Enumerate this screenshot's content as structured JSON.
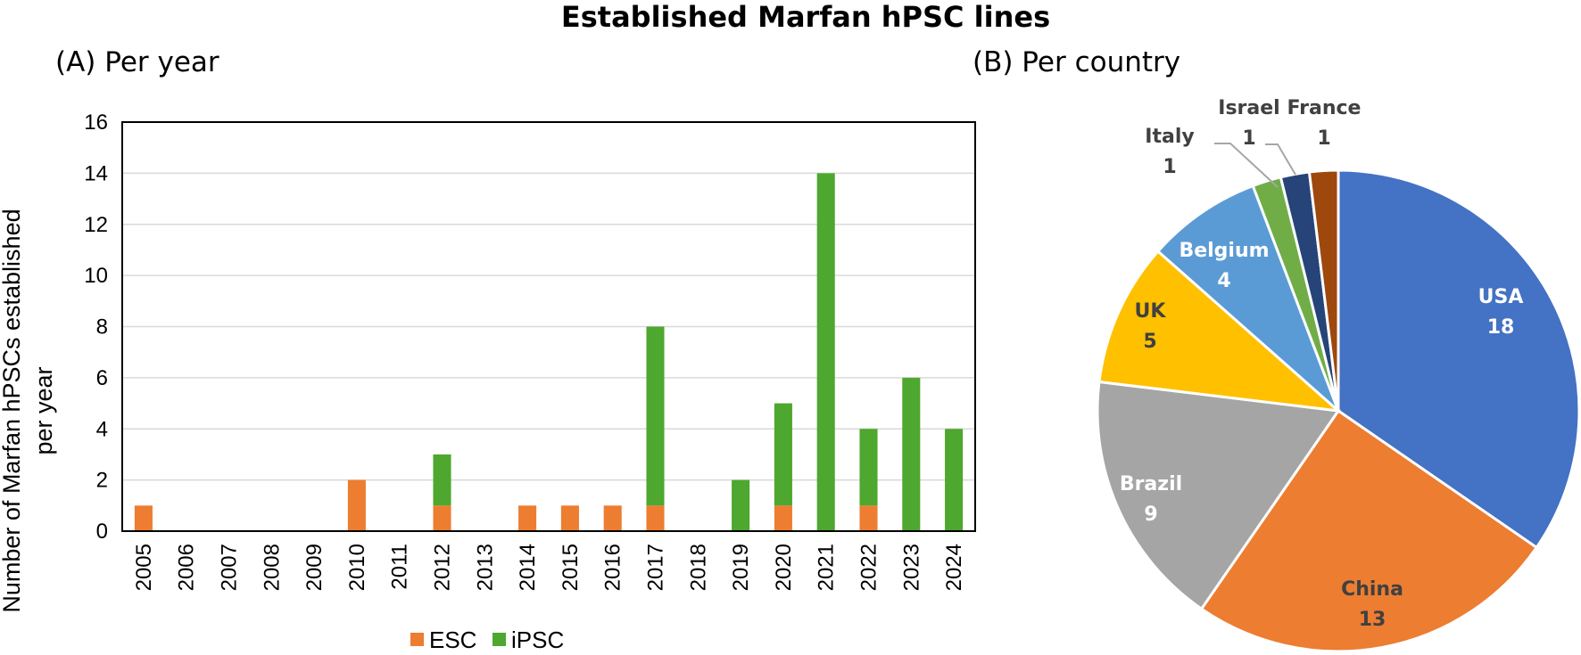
{
  "title": "Established Marfan hPSC lines",
  "colors": {
    "ESC": "#ED7D31",
    "iPSC": "#4EA72E",
    "USA": "#4472C4",
    "China": "#ED7D31",
    "Brazil": "#A5A5A5",
    "UK": "#FFC000",
    "Belgium": "#5B9BD5",
    "Italy": "#70AD47",
    "Israel": "#264478",
    "France": "#9E480E"
  },
  "chart_data": [
    {
      "type": "bar",
      "stacked": true,
      "title": "(A) Per year",
      "ylabel": "Number of Marfan hPSCs established per year",
      "ylabel_lines": [
        "Number of Marfan hPSCs established",
        "per year"
      ],
      "ylim": [
        0,
        16
      ],
      "yticks": [
        0,
        2,
        4,
        6,
        8,
        10,
        12,
        14,
        16
      ],
      "grid": true,
      "legend": "bottom",
      "categories": [
        "2005",
        "2006",
        "2007",
        "2008",
        "2009",
        "2010",
        "2011",
        "2012",
        "2013",
        "2014",
        "2015",
        "2016",
        "2017",
        "2018",
        "2019",
        "2020",
        "2021",
        "2022",
        "2023",
        "2024"
      ],
      "series": [
        {
          "name": "ESC",
          "values": [
            1,
            0,
            0,
            0,
            0,
            2,
            0,
            1,
            0,
            1,
            1,
            1,
            1,
            0,
            0,
            1,
            0,
            1,
            0,
            0
          ]
        },
        {
          "name": "iPSC",
          "values": [
            0,
            0,
            0,
            0,
            0,
            0,
            0,
            2,
            0,
            0,
            0,
            0,
            7,
            0,
            2,
            4,
            14,
            3,
            6,
            4
          ]
        }
      ]
    },
    {
      "type": "pie",
      "title": "(B) Per country",
      "slices": [
        {
          "label": "USA",
          "value": 18
        },
        {
          "label": "China",
          "value": 13
        },
        {
          "label": "Brazil",
          "value": 9
        },
        {
          "label": "UK",
          "value": 5
        },
        {
          "label": "Belgium",
          "value": 4
        },
        {
          "label": "Italy",
          "value": 1
        },
        {
          "label": "Israel",
          "value": 1
        },
        {
          "label": "France",
          "value": 1
        }
      ]
    }
  ]
}
